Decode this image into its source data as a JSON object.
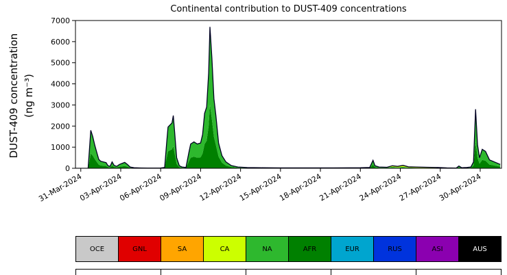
{
  "chart_data": {
    "type": "area",
    "title": "Continental contribution to DUST-409 concentrations",
    "ylabel_line1": "DUST-409 concentration",
    "ylabel_line2": "(ng m⁻³)",
    "xlim": [
      -0.4,
      31.6
    ],
    "ylim": [
      0,
      7000
    ],
    "grid": false,
    "legend_position": "bottom",
    "line_color": "#000022",
    "y_ticks": [
      0,
      1000,
      2000,
      3000,
      4000,
      5000,
      6000,
      7000
    ],
    "x_ticks": [
      {
        "t": 0,
        "label": "31-Mar-2024"
      },
      {
        "t": 3,
        "label": "03-Apr-2024"
      },
      {
        "t": 6,
        "label": "06-Apr-2024"
      },
      {
        "t": 9,
        "label": "09-Apr-2024"
      },
      {
        "t": 12,
        "label": "12-Apr-2024"
      },
      {
        "t": 15,
        "label": "15-Apr-2024"
      },
      {
        "t": 18,
        "label": "18-Apr-2024"
      },
      {
        "t": 21,
        "label": "21-Apr-2024"
      },
      {
        "t": 24,
        "label": "24-Apr-2024"
      },
      {
        "t": 27,
        "label": "27-Apr-2024"
      },
      {
        "t": 30,
        "label": "30-Apr-2024"
      }
    ],
    "series_colors": {
      "AFR": "#008000",
      "NA": "#2eb82e",
      "CA": "#ccff00"
    },
    "points_t": [
      -0.4,
      0.0,
      0.55,
      0.65,
      0.75,
      0.9,
      1.05,
      1.2,
      1.35,
      1.5,
      1.7,
      1.9,
      2.05,
      2.2,
      2.35,
      2.5,
      2.7,
      2.9,
      3.1,
      3.3,
      3.5,
      3.7,
      4.0,
      4.5,
      5.0,
      5.5,
      6.0,
      6.3,
      6.45,
      6.55,
      6.7,
      6.85,
      6.95,
      7.05,
      7.2,
      7.4,
      7.6,
      7.9,
      8.1,
      8.25,
      8.5,
      8.75,
      9.0,
      9.15,
      9.3,
      9.45,
      9.6,
      9.7,
      9.85,
      10.0,
      10.15,
      10.35,
      10.6,
      10.9,
      11.3,
      11.8,
      12.5,
      13.5,
      15,
      17,
      19,
      21,
      21.7,
      21.95,
      22.1,
      22.4,
      23.0,
      23.4,
      23.8,
      24.2,
      24.6,
      25.2,
      26.0,
      26.8,
      27.5,
      28.2,
      28.4,
      28.6,
      29.0,
      29.3,
      29.5,
      29.65,
      29.8,
      29.95,
      30.15,
      30.4,
      30.7,
      31.5
    ],
    "series": [
      {
        "name": "AFR",
        "values": [
          0,
          0,
          0,
          350,
          700,
          600,
          440,
          300,
          170,
          130,
          120,
          110,
          50,
          35,
          120,
          60,
          35,
          70,
          90,
          110,
          70,
          25,
          10,
          5,
          5,
          5,
          5,
          15,
          500,
          800,
          850,
          900,
          1050,
          700,
          200,
          50,
          25,
          15,
          300,
          500,
          550,
          500,
          520,
          700,
          1150,
          1300,
          2000,
          3000,
          2300,
          1500,
          1100,
          550,
          270,
          130,
          60,
          25,
          15,
          10,
          8,
          8,
          8,
          10,
          15,
          170,
          50,
          25,
          15,
          30,
          20,
          30,
          15,
          10,
          8,
          8,
          5,
          3,
          45,
          12,
          15,
          25,
          130,
          1250,
          480,
          220,
          400,
          355,
          175,
          80
        ]
      },
      {
        "name": "NA",
        "values": [
          0,
          0,
          0,
          550,
          1100,
          900,
          660,
          450,
          250,
          200,
          180,
          160,
          70,
          55,
          180,
          80,
          55,
          110,
          140,
          170,
          110,
          35,
          15,
          10,
          5,
          5,
          10,
          25,
          700,
          1150,
          1200,
          1250,
          1450,
          1000,
          300,
          70,
          35,
          25,
          400,
          650,
          700,
          650,
          680,
          900,
          1450,
          1600,
          2500,
          3700,
          2900,
          1800,
          1400,
          650,
          330,
          170,
          70,
          35,
          20,
          15,
          12,
          12,
          12,
          15,
          25,
          210,
          70,
          35,
          20,
          40,
          25,
          40,
          20,
          15,
          12,
          12,
          8,
          5,
          60,
          15,
          20,
          30,
          165,
          1545,
          615,
          275,
          495,
          440,
          220,
          100
        ]
      },
      {
        "name": "CA",
        "values": [
          0,
          0,
          0,
          0,
          0,
          0,
          0,
          0,
          0,
          0,
          0,
          0,
          0,
          0,
          0,
          0,
          0,
          0,
          0,
          0,
          0,
          0,
          0,
          0,
          0,
          0,
          0,
          0,
          0,
          0,
          0,
          0,
          0,
          0,
          0,
          0,
          0,
          0,
          0,
          0,
          0,
          0,
          0,
          0,
          0,
          0,
          0,
          0,
          0,
          0,
          0,
          0,
          0,
          0,
          0,
          0,
          0,
          0,
          0,
          0,
          0,
          0,
          0,
          0,
          0,
          0,
          15,
          50,
          45,
          70,
          35,
          35,
          30,
          20,
          7,
          2,
          2,
          2,
          3,
          5,
          5,
          5,
          5,
          5,
          5,
          5,
          5,
          5
        ]
      }
    ]
  },
  "legend": {
    "row2_cells": 5,
    "items": [
      {
        "label": "OCE",
        "color": "#c9c9c9",
        "text": "#000000"
      },
      {
        "label": "GNL",
        "color": "#e00000",
        "text": "#000000"
      },
      {
        "label": "SA",
        "color": "#ffa500",
        "text": "#000000"
      },
      {
        "label": "CA",
        "color": "#ccff00",
        "text": "#000000"
      },
      {
        "label": "NA",
        "color": "#2eb82e",
        "text": "#000000"
      },
      {
        "label": "AFR",
        "color": "#008000",
        "text": "#000000"
      },
      {
        "label": "EUR",
        "color": "#00a5cf",
        "text": "#000000"
      },
      {
        "label": "RUS",
        "color": "#0033dd",
        "text": "#000000"
      },
      {
        "label": "ASI",
        "color": "#8b00b0",
        "text": "#000000"
      },
      {
        "label": "AUS",
        "color": "#000000",
        "text": "#ffffff"
      }
    ]
  }
}
